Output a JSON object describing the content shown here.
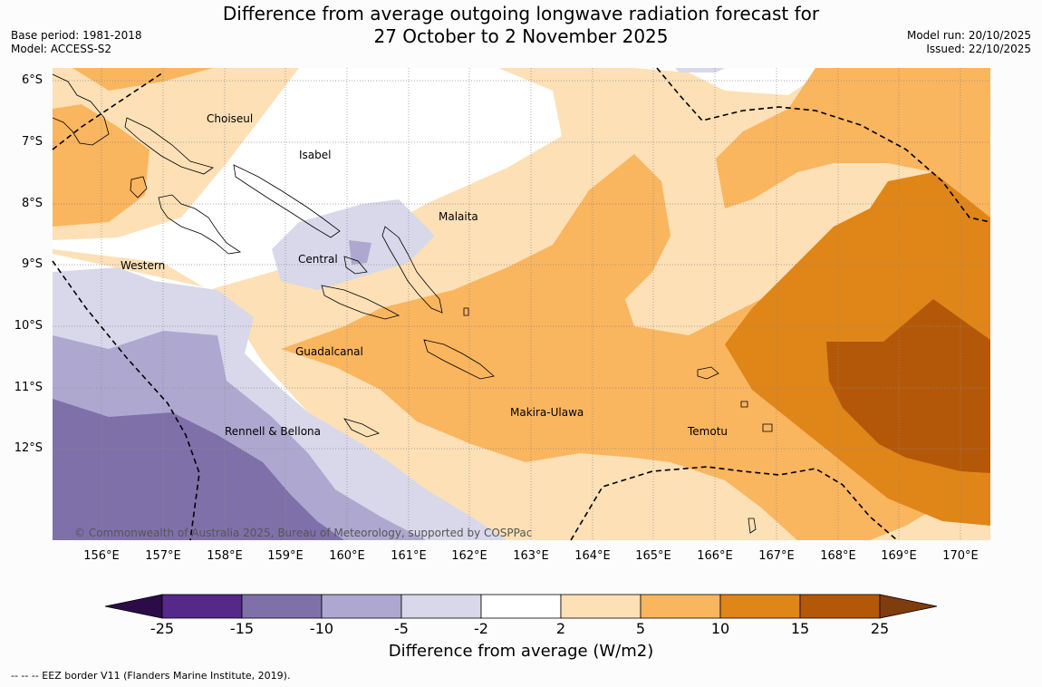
{
  "title": {
    "line1": "Difference from average outgoing longwave radiation forecast for",
    "line2": "27 October to 2 November 2025"
  },
  "meta": {
    "base_period": "Base period: 1981-2018",
    "model": "Model: ACCESS-S2",
    "model_run": "Model run: 20/10/2025",
    "issued": "Issued: 22/10/2025"
  },
  "map": {
    "lat_labels": [
      "6°S",
      "7°S",
      "8°S",
      "9°S",
      "10°S",
      "11°S",
      "12°S"
    ],
    "lon_labels": [
      "156°E",
      "157°E",
      "158°E",
      "159°E",
      "160°E",
      "161°E",
      "162°E",
      "163°E",
      "164°E",
      "165°E",
      "166°E",
      "167°E",
      "168°E",
      "169°E",
      "170°E"
    ],
    "places": [
      "Choiseul",
      "Isabel",
      "Malaita",
      "Central",
      "Western",
      "Guadalcanal",
      "Makira-Ulawa",
      "Rennell & Bellona",
      "Temotu"
    ],
    "copyright": "© Commonwealth of Australia 2025, Bureau of Meteorology, supported by COSPPac"
  },
  "colorbar": {
    "ticks": [
      "-25",
      "-15",
      "-10",
      "-5",
      "-2",
      "2",
      "5",
      "10",
      "15",
      "25"
    ],
    "colors": [
      "#55288a",
      "#7f70aa",
      "#aea8d0",
      "#d8d8ea",
      "#ffffff",
      "#fde0b6",
      "#fab55f",
      "#e08518",
      "#b35808"
    ],
    "under_color": "#2c0c48",
    "over_color": "#7f3c0c",
    "label": "Difference from average (W/m2)"
  },
  "legend": {
    "eez": "--  --  -- EEZ border V11 (Flanders Marine Institute, 2019)."
  }
}
